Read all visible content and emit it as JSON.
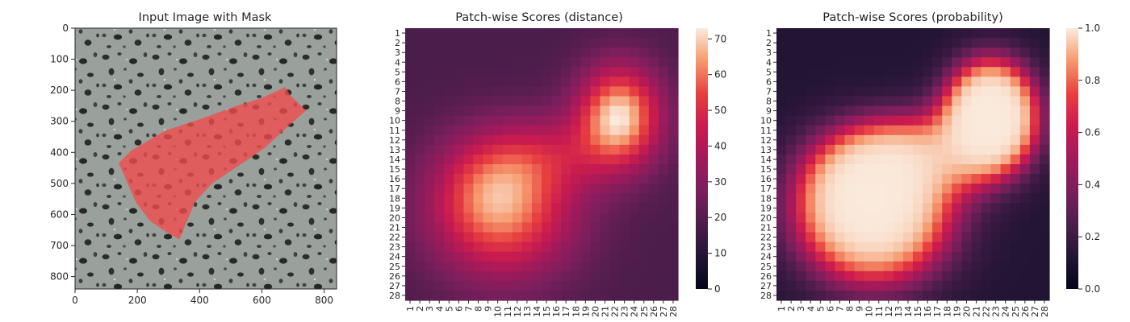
{
  "chart_data": [
    {
      "type": "image",
      "title": "Input Image with Mask",
      "xlabel": "",
      "ylabel": "",
      "xlim": [
        0,
        840
      ],
      "ylim": [
        840,
        0
      ],
      "xticks": [
        0,
        200,
        400,
        600,
        800
      ],
      "yticks": [
        0,
        100,
        200,
        300,
        400,
        500,
        600,
        700,
        800
      ],
      "mask_color": "#f24c4c",
      "mask_polygon": [
        [
          140,
          435
        ],
        [
          180,
          395
        ],
        [
          290,
          330
        ],
        [
          410,
          290
        ],
        [
          520,
          250
        ],
        [
          600,
          225
        ],
        [
          675,
          190
        ],
        [
          690,
          215
        ],
        [
          742,
          265
        ],
        [
          680,
          320
        ],
        [
          610,
          385
        ],
        [
          530,
          440
        ],
        [
          440,
          500
        ],
        [
          385,
          560
        ],
        [
          335,
          680
        ],
        [
          290,
          655
        ],
        [
          240,
          620
        ],
        [
          195,
          560
        ],
        [
          165,
          490
        ]
      ]
    },
    {
      "type": "heatmap",
      "title": "Patch-wise Scores (distance)",
      "xlabel": "",
      "ylabel": "",
      "x_categories": [
        "1",
        "2",
        "3",
        "4",
        "5",
        "6",
        "7",
        "8",
        "9",
        "10",
        "11",
        "12",
        "13",
        "14",
        "15",
        "16",
        "17",
        "18",
        "19",
        "20",
        "21",
        "22",
        "23",
        "24",
        "25",
        "26",
        "27",
        "28"
      ],
      "y_categories": [
        "1",
        "2",
        "3",
        "4",
        "5",
        "6",
        "7",
        "8",
        "9",
        "10",
        "11",
        "12",
        "13",
        "14",
        "15",
        "16",
        "17",
        "18",
        "19",
        "20",
        "21",
        "22",
        "23",
        "24",
        "25",
        "26",
        "27",
        "28"
      ],
      "colorbar_range": [
        0,
        73
      ],
      "colorbar_ticks": [
        0,
        10,
        20,
        30,
        40,
        50,
        60,
        70
      ],
      "colormap": "rocket",
      "base_value": 18,
      "blobs": [
        {
          "cx": 10.5,
          "cy": 19.5,
          "sx": 5.2,
          "sy": 4.8,
          "amp": 42
        },
        {
          "cx": 8.5,
          "cy": 17,
          "sx": 3.5,
          "sy": 3,
          "amp": 8
        },
        {
          "cx": 22.5,
          "cy": 9.5,
          "sx": 3,
          "sy": 3.6,
          "amp": 52
        },
        {
          "cx": 14.5,
          "cy": 13.5,
          "sx": 5.5,
          "sy": 3,
          "amp": 18
        }
      ]
    },
    {
      "type": "heatmap",
      "title": "Patch-wise Scores (probability)",
      "xlabel": "",
      "ylabel": "",
      "x_categories": [
        "1",
        "2",
        "3",
        "4",
        "5",
        "6",
        "7",
        "8",
        "9",
        "10",
        "11",
        "12",
        "13",
        "14",
        "15",
        "16",
        "17",
        "18",
        "19",
        "20",
        "21",
        "22",
        "23",
        "24",
        "25",
        "26",
        "27",
        "28"
      ],
      "y_categories": [
        "1",
        "2",
        "3",
        "4",
        "5",
        "6",
        "7",
        "8",
        "9",
        "10",
        "11",
        "12",
        "13",
        "14",
        "15",
        "16",
        "17",
        "18",
        "19",
        "20",
        "21",
        "22",
        "23",
        "24",
        "25",
        "26",
        "27",
        "28"
      ],
      "colorbar_range": [
        0.0,
        1.0
      ],
      "colorbar_ticks": [
        "0.0",
        "0.2",
        "0.4",
        "0.6",
        "0.8",
        "1.0"
      ],
      "colormap": "rocket",
      "derived_from": "distance",
      "sigmoid_center": 30,
      "sigmoid_scale": 6
    }
  ]
}
